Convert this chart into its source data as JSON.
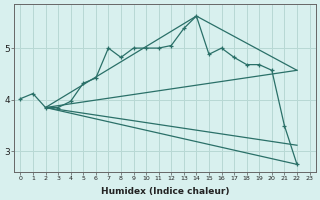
{
  "xlabel": "Humidex (Indice chaleur)",
  "ylabel": "",
  "bg_color": "#d8f0ee",
  "grid_color": "#b8d8d4",
  "line_color": "#2a7068",
  "xlim": [
    -0.5,
    23.5
  ],
  "ylim": [
    2.6,
    5.85
  ],
  "yticks": [
    3,
    4,
    5
  ],
  "xticks": [
    0,
    1,
    2,
    3,
    4,
    5,
    6,
    7,
    8,
    9,
    10,
    11,
    12,
    13,
    14,
    15,
    16,
    17,
    18,
    19,
    20,
    21,
    22,
    23
  ],
  "main_line": {
    "x": [
      0,
      1,
      2,
      3,
      4,
      5,
      6,
      7,
      8,
      9,
      10,
      11,
      12,
      13,
      14,
      15,
      16,
      17,
      18,
      19,
      20,
      21,
      22
    ],
    "y": [
      4.02,
      4.12,
      3.85,
      3.85,
      3.97,
      4.32,
      4.42,
      5.0,
      4.82,
      5.0,
      5.0,
      5.0,
      5.05,
      5.38,
      5.62,
      4.88,
      5.0,
      4.82,
      4.68,
      4.68,
      4.57,
      3.5,
      2.75
    ]
  },
  "straight_lines": [
    {
      "x": [
        2,
        22
      ],
      "y": [
        3.85,
        2.75
      ]
    },
    {
      "x": [
        2,
        22
      ],
      "y": [
        3.85,
        4.57
      ]
    },
    {
      "x": [
        2,
        22
      ],
      "y": [
        3.85,
        3.12
      ]
    },
    {
      "x": [
        2,
        14,
        22
      ],
      "y": [
        3.85,
        5.62,
        4.57
      ]
    }
  ]
}
